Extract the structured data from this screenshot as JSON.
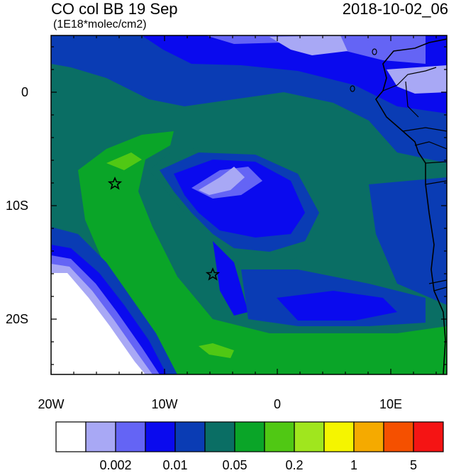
{
  "header": {
    "title_left": "CO col BB 19 Sep",
    "title_right": "2018-10-02_06",
    "subtitle": "(1E18*molec/cm2)"
  },
  "axes": {
    "lat_labels": [
      "0",
      "10S",
      "20S"
    ],
    "lon_labels": [
      "20W",
      "10W",
      "0",
      "10E"
    ]
  },
  "colorbar": {
    "colors": [
      "#ffffff",
      "#a8a8f5",
      "#6464f5",
      "#0a0aee",
      "#0a3cb4",
      "#0a6e64",
      "#0aa528",
      "#50c814",
      "#a0e61e",
      "#f5f500",
      "#f5aa00",
      "#f55000",
      "#f51414"
    ],
    "labels": [
      "0.002",
      "0.01",
      "0.05",
      "0.2",
      "1",
      "5"
    ]
  },
  "map": {
    "markers": [
      "star-marker",
      "star-marker"
    ],
    "colors": {
      "white_region": "#ffffff",
      "light_blue": "#a8a8f5",
      "medium_blue": "#6464f5",
      "blue": "#0a0aee",
      "dark_blue": "#0a3cb4",
      "teal": "#0a6e64",
      "green": "#0aa528",
      "light_green": "#50c814"
    }
  }
}
